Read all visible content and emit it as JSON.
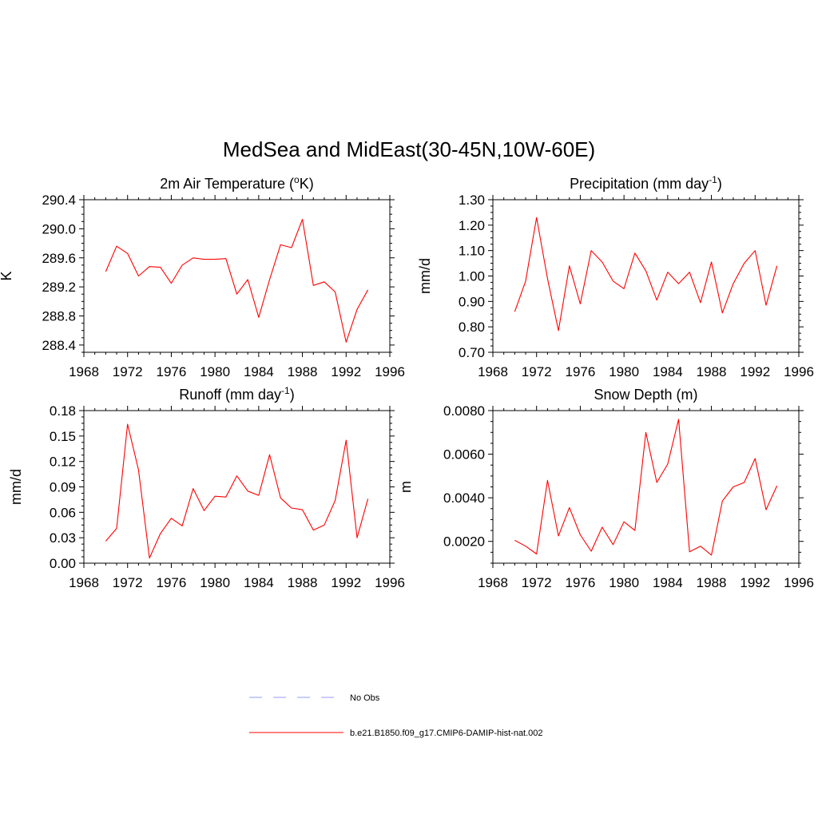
{
  "title": "MedSea and MidEast(30-45N,10W-60E)",
  "colors": {
    "series": "#ff0000",
    "obs": "#9999ff",
    "axis": "#000000"
  },
  "legend": [
    {
      "label": "No Obs",
      "style": "dashed",
      "color": "#9999ff"
    },
    {
      "label": "b.e21.B1850.f09_g17.CMIP6-DAMIP-hist-nat.002",
      "style": "solid",
      "color": "#ff0000"
    }
  ],
  "chart_data": [
    {
      "type": "line",
      "title": "2m Air Temperature (",
      "title_sup": "o",
      "title_after": "K)",
      "xlabel": "",
      "ylabel": "K",
      "xlim": [
        1968,
        1996
      ],
      "ylim": [
        288.3,
        290.4
      ],
      "xticks": [
        1968,
        1972,
        1976,
        1980,
        1984,
        1988,
        1992,
        1996
      ],
      "yticks": [
        "288.4",
        "288.8",
        "289.2",
        "289.6",
        "290.0",
        "290.4"
      ],
      "x": [
        1970,
        1971,
        1972,
        1973,
        1974,
        1975,
        1976,
        1977,
        1978,
        1979,
        1980,
        1981,
        1982,
        1983,
        1984,
        1985,
        1986,
        1987,
        1988,
        1989,
        1990,
        1991,
        1992,
        1993,
        1994
      ],
      "values": [
        289.41,
        289.76,
        289.66,
        289.35,
        289.48,
        289.47,
        289.25,
        289.5,
        289.6,
        289.58,
        289.58,
        289.59,
        289.1,
        289.3,
        288.78,
        289.3,
        289.78,
        289.74,
        290.13,
        289.22,
        289.27,
        289.13,
        288.44,
        288.89,
        289.16
      ]
    },
    {
      "type": "line",
      "title": "Precipitation (mm day",
      "title_sup": "-1",
      "title_after": ")",
      "xlabel": "",
      "ylabel": "mm/d",
      "xlim": [
        1968,
        1996
      ],
      "ylim": [
        0.7,
        1.3
      ],
      "xticks": [
        1968,
        1972,
        1976,
        1980,
        1984,
        1988,
        1992,
        1996
      ],
      "yticks": [
        "0.70",
        "0.80",
        "0.90",
        "1.00",
        "1.10",
        "1.20",
        "1.30"
      ],
      "x": [
        1970,
        1971,
        1972,
        1973,
        1974,
        1975,
        1976,
        1977,
        1978,
        1979,
        1980,
        1981,
        1982,
        1983,
        1984,
        1985,
        1986,
        1987,
        1988,
        1989,
        1990,
        1991,
        1992,
        1993,
        1994
      ],
      "values": [
        0.86,
        0.98,
        1.23,
        0.99,
        0.785,
        1.04,
        0.89,
        1.1,
        1.055,
        0.98,
        0.95,
        1.09,
        1.02,
        0.905,
        1.015,
        0.97,
        1.015,
        0.895,
        1.055,
        0.855,
        0.97,
        1.05,
        1.1,
        0.885,
        1.04
      ]
    },
    {
      "type": "line",
      "title": "Runoff (mm day",
      "title_sup": "-1",
      "title_after": ")",
      "xlabel": "",
      "ylabel": "mm/d",
      "xlim": [
        1968,
        1996
      ],
      "ylim": [
        0.0,
        0.18
      ],
      "xticks": [
        1968,
        1972,
        1976,
        1980,
        1984,
        1988,
        1992,
        1996
      ],
      "yticks": [
        "0.00",
        "0.03",
        "0.06",
        "0.09",
        "0.12",
        "0.15",
        "0.18"
      ],
      "x": [
        1970,
        1971,
        1972,
        1973,
        1974,
        1975,
        1976,
        1977,
        1978,
        1979,
        1980,
        1981,
        1982,
        1983,
        1984,
        1985,
        1986,
        1987,
        1988,
        1989,
        1990,
        1991,
        1992,
        1993,
        1994
      ],
      "values": [
        0.026,
        0.041,
        0.164,
        0.11,
        0.006,
        0.035,
        0.053,
        0.044,
        0.088,
        0.062,
        0.079,
        0.078,
        0.103,
        0.085,
        0.08,
        0.128,
        0.077,
        0.065,
        0.063,
        0.039,
        0.045,
        0.074,
        0.145,
        0.03,
        0.076
      ]
    },
    {
      "type": "line",
      "title": "Snow Depth (m)",
      "title_sup": "",
      "title_after": "",
      "xlabel": "",
      "ylabel": "m",
      "xlim": [
        1968,
        1996
      ],
      "ylim": [
        0.001,
        0.008
      ],
      "xticks": [
        1968,
        1972,
        1976,
        1980,
        1984,
        1988,
        1992,
        1996
      ],
      "yticks": [
        "0.0020",
        "0.0040",
        "0.0060",
        "0.0080"
      ],
      "x": [
        1970,
        1971,
        1972,
        1973,
        1974,
        1975,
        1976,
        1977,
        1978,
        1979,
        1980,
        1981,
        1982,
        1983,
        1984,
        1985,
        1986,
        1987,
        1988,
        1989,
        1990,
        1991,
        1992,
        1993,
        1994
      ],
      "values": [
        0.00205,
        0.00178,
        0.00142,
        0.0048,
        0.00225,
        0.00355,
        0.0023,
        0.00155,
        0.00265,
        0.00185,
        0.0029,
        0.0025,
        0.007,
        0.0047,
        0.00555,
        0.0076,
        0.00152,
        0.00178,
        0.00137,
        0.00385,
        0.0045,
        0.0047,
        0.0058,
        0.00345,
        0.00455
      ]
    }
  ]
}
